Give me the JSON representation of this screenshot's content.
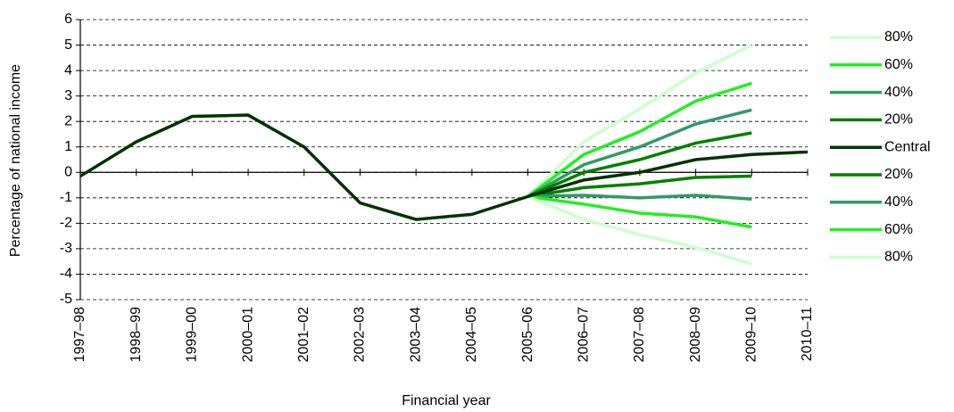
{
  "chart_data": {
    "type": "line",
    "x_label": "Financial year",
    "y_label": "Percentage of national income",
    "categories": [
      "1997–98",
      "1998–99",
      "1999–00",
      "2000–01",
      "2001–02",
      "2002–03",
      "2003–04",
      "2004–05",
      "2005–06",
      "2006–07",
      "2007–08",
      "2008–09",
      "2009–10",
      "2010–11"
    ],
    "ylim": [
      -5,
      6
    ],
    "yticks": [
      -5,
      -4,
      -3,
      -2,
      -1,
      0,
      1,
      2,
      3,
      4,
      5,
      6
    ],
    "grid": true,
    "series": [
      {
        "name": "80%",
        "color": "#ccffcc",
        "values": [
          null,
          null,
          null,
          null,
          null,
          null,
          null,
          null,
          -0.95,
          1.2,
          2.5,
          3.9,
          5.0,
          null
        ]
      },
      {
        "name": "60%",
        "color": "#22ee22",
        "values": [
          null,
          null,
          null,
          null,
          null,
          null,
          null,
          null,
          -0.95,
          0.7,
          1.6,
          2.8,
          3.5,
          null
        ]
      },
      {
        "name": "40%",
        "color": "#339966",
        "values": [
          null,
          null,
          null,
          null,
          null,
          null,
          null,
          null,
          -0.95,
          0.3,
          1.0,
          1.9,
          2.45,
          null
        ]
      },
      {
        "name": "20%",
        "color": "#008000",
        "values": [
          null,
          null,
          null,
          null,
          null,
          null,
          null,
          null,
          -0.95,
          0.0,
          0.5,
          1.15,
          1.55,
          null
        ]
      },
      {
        "name": "Central",
        "color": "#003300",
        "values": [
          -0.15,
          1.2,
          2.2,
          2.25,
          1.0,
          -1.2,
          -1.85,
          -1.65,
          -0.95,
          -0.3,
          0.0,
          0.5,
          0.7,
          0.8
        ]
      },
      {
        "name": "20%",
        "color": "#008000",
        "values": [
          null,
          null,
          null,
          null,
          null,
          null,
          null,
          null,
          -0.95,
          -0.6,
          -0.45,
          -0.2,
          -0.15,
          null
        ]
      },
      {
        "name": "40%",
        "color": "#339966",
        "values": [
          null,
          null,
          null,
          null,
          null,
          null,
          null,
          null,
          -0.95,
          -0.9,
          -1.0,
          -0.9,
          -1.05,
          null
        ]
      },
      {
        "name": "60%",
        "color": "#22ee22",
        "values": [
          null,
          null,
          null,
          null,
          null,
          null,
          null,
          null,
          -0.95,
          -1.25,
          -1.6,
          -1.75,
          -2.15,
          null
        ]
      },
      {
        "name": "80%",
        "color": "#ccffcc",
        "values": [
          null,
          null,
          null,
          null,
          null,
          null,
          null,
          null,
          -0.95,
          -1.85,
          -2.45,
          -2.95,
          -3.6,
          null
        ]
      }
    ]
  }
}
